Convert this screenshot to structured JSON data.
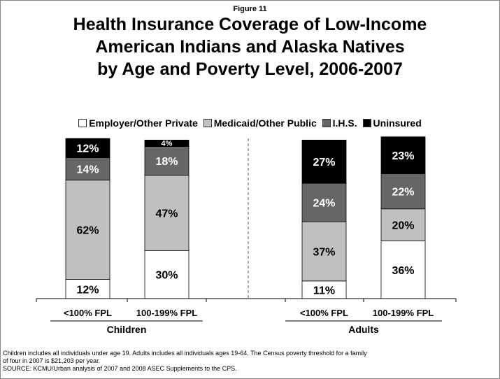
{
  "figure_label": "Figure 11",
  "title": "Health Insurance Coverage of Low-Income\nAmerican Indians and Alaska Natives\nby Age and Poverty Level, 2006-2007",
  "footnotes": [
    "Children includes all individuals under age 19.  Adults includes all individuals ages 19-64.  The Census poverty threshold for a family",
    "of four in 2007 is $21,203 per year.",
    "SOURCE: KCMU/Urban analysis of 2007 and 2008 ASEC Supplements to the CPS."
  ],
  "colors": {
    "employer": "#ffffff",
    "medicaid": "#c0c0c0",
    "ihs": "#666666",
    "uninsured": "#000000"
  },
  "chart_data": {
    "type": "bar",
    "stacked": true,
    "percent_stacked": true,
    "categories": [
      "<100% FPL",
      "100-199% FPL",
      "<100% FPL",
      "100-199% FPL"
    ],
    "groups": [
      {
        "label": "Children",
        "categories": [
          "<100% FPL",
          "100-199% FPL"
        ]
      },
      {
        "label": "Adults",
        "categories": [
          "<100% FPL",
          "100-199% FPL"
        ]
      }
    ],
    "series": [
      {
        "name": "Employer/Other Private",
        "key": "employer",
        "values": [
          12,
          30,
          11,
          36
        ],
        "labels": [
          "12%",
          "30%",
          "11%",
          "36%"
        ]
      },
      {
        "name": "Medicaid/Other Public",
        "key": "medicaid",
        "values": [
          62,
          47,
          37,
          20
        ],
        "labels": [
          "62%",
          "47%",
          "37%",
          "20%"
        ]
      },
      {
        "name": "I.H.S.",
        "key": "ihs",
        "values": [
          14,
          18,
          24,
          22
        ],
        "labels": [
          "14%",
          "18%",
          "24%",
          "22%"
        ]
      },
      {
        "name": "Uninsured",
        "key": "uninsured",
        "values": [
          12,
          4,
          27,
          23
        ],
        "labels": [
          "12%",
          "4%",
          "27%",
          "23%"
        ]
      }
    ],
    "ylim": [
      0,
      100
    ],
    "legend_position": "top",
    "grid": false
  }
}
